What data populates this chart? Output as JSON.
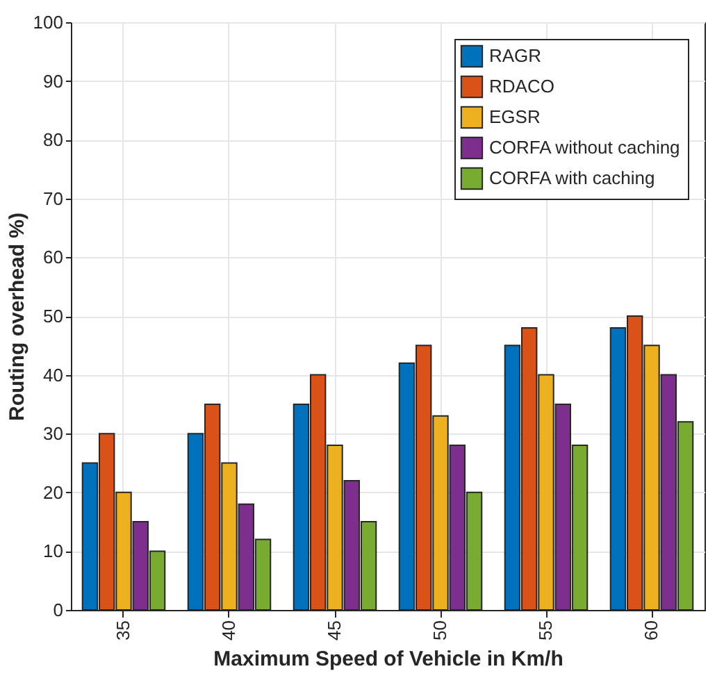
{
  "chart_data": {
    "type": "bar",
    "xlabel": "Maximum Speed of Vehicle in Km/h",
    "ylabel": "Routing overhead %)",
    "categories": [
      "35",
      "40",
      "45",
      "50",
      "55",
      "60"
    ],
    "series": [
      {
        "name": "RAGR",
        "color": "#0072bd",
        "values": [
          25,
          30,
          35,
          42,
          45,
          48
        ]
      },
      {
        "name": "RDACO",
        "color": "#d95319",
        "values": [
          30,
          35,
          40,
          45,
          48,
          50
        ]
      },
      {
        "name": "EGSR",
        "color": "#edb120",
        "values": [
          20,
          25,
          28,
          33,
          40,
          45
        ]
      },
      {
        "name": "CORFA without caching",
        "color": "#7e2f8e",
        "values": [
          15,
          18,
          22,
          28,
          35,
          40
        ]
      },
      {
        "name": "CORFA with caching",
        "color": "#77ac30",
        "values": [
          10,
          12,
          15,
          20,
          28,
          32
        ]
      }
    ],
    "ylim": [
      0,
      100
    ],
    "yticks": [
      0,
      10,
      20,
      30,
      40,
      50,
      60,
      70,
      80,
      90,
      100
    ],
    "grid": true,
    "legend": "top right"
  }
}
